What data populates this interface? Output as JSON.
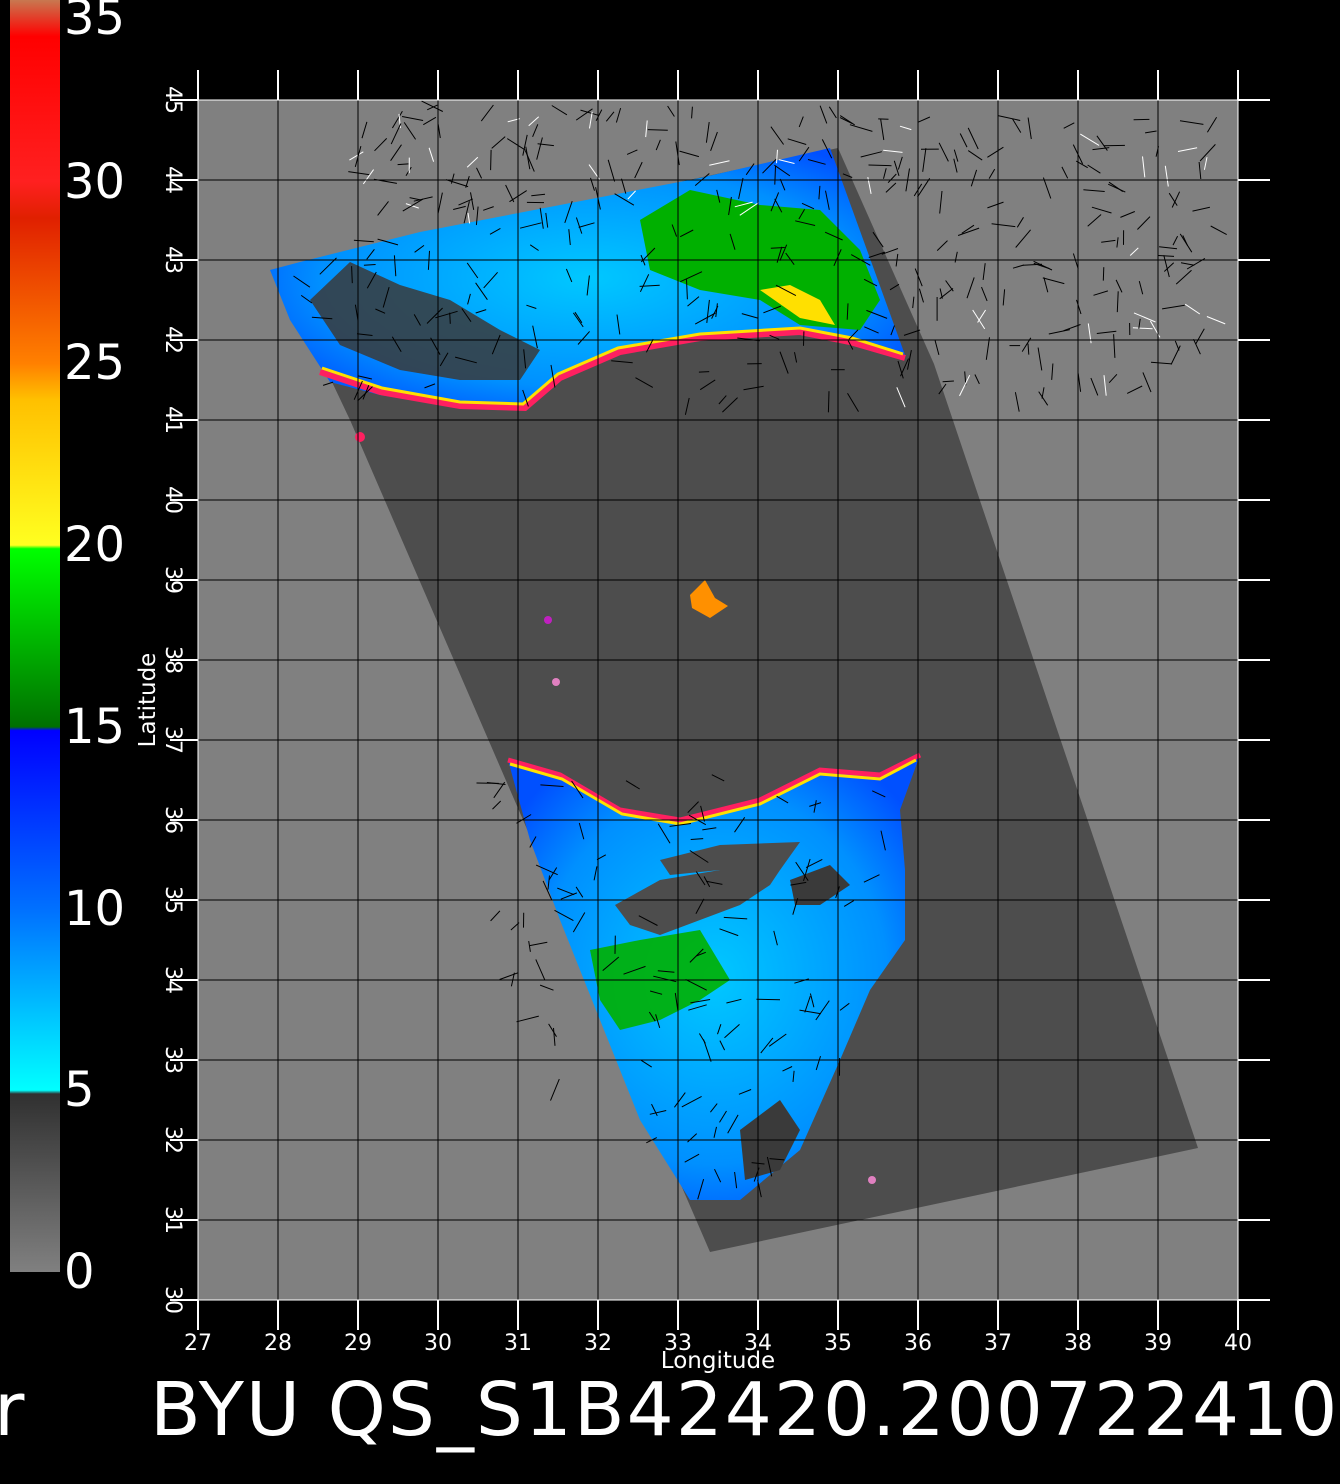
{
  "colorbar": {
    "labels": [
      "35",
      "30",
      "25",
      "20",
      "15",
      "10",
      "5",
      "0"
    ],
    "values": [
      35,
      30,
      25,
      20,
      15,
      10,
      5,
      0
    ],
    "stops": [
      {
        "v": 35,
        "color": "#c87850"
      },
      {
        "v": 34,
        "color": "#ff0000"
      },
      {
        "v": 30,
        "color": "#ff2020"
      },
      {
        "v": 29,
        "color": "#e02000"
      },
      {
        "v": 25,
        "color": "#ff8000"
      },
      {
        "v": 24,
        "color": "#ffc000"
      },
      {
        "v": 20,
        "color": "#ffff20"
      },
      {
        "v": 19.9,
        "color": "#00ff00"
      },
      {
        "v": 15,
        "color": "#007000"
      },
      {
        "v": 14.9,
        "color": "#0000ff"
      },
      {
        "v": 10,
        "color": "#0070ff"
      },
      {
        "v": 5,
        "color": "#00ffff"
      },
      {
        "v": 4.9,
        "color": "#303030"
      },
      {
        "v": 0,
        "color": "#808080"
      }
    ]
  },
  "map": {
    "xlabel": "Longitude",
    "ylabel": "Latitude",
    "x_ticks": [
      "27",
      "28",
      "29",
      "30",
      "31",
      "32",
      "33",
      "34",
      "35",
      "36",
      "37",
      "38",
      "39",
      "40"
    ],
    "y_ticks": [
      "30",
      "31",
      "32",
      "33",
      "34",
      "35",
      "36",
      "37",
      "38",
      "39",
      "40",
      "41",
      "42",
      "43",
      "44",
      "45"
    ],
    "xlim": [
      27,
      40
    ],
    "ylim": [
      30,
      45
    ],
    "background_color": "#808080",
    "swath_color": "#4d4d4d",
    "swath_corners": [
      [
        28.0,
        42.9
      ],
      [
        35.0,
        44.4
      ],
      [
        36.2,
        41.7
      ],
      [
        39.5,
        31.9
      ],
      [
        33.4,
        30.6
      ],
      [
        28.9,
        41.0
      ]
    ],
    "grid": true
  },
  "footer": {
    "title": "BYU  QS_S1B42420.200722410",
    "left_fragment": "r"
  }
}
